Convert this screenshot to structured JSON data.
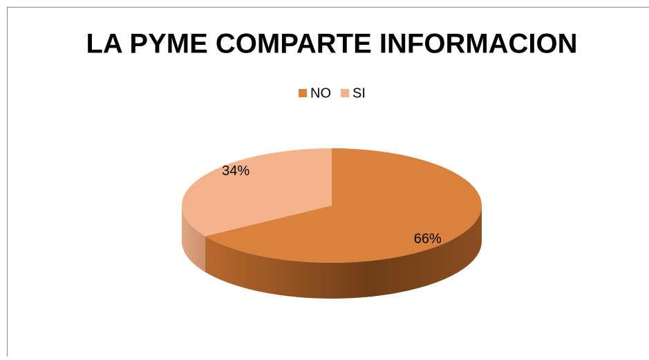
{
  "chart_data": {
    "type": "pie",
    "title": "LA PYME COMPARTE INFORMACION",
    "categories": [
      "NO",
      "SI"
    ],
    "values": [
      66,
      34
    ],
    "value_labels": [
      "66%",
      "34%"
    ],
    "colors": [
      "#d9813d",
      "#f4b38c"
    ],
    "legend": "top"
  }
}
